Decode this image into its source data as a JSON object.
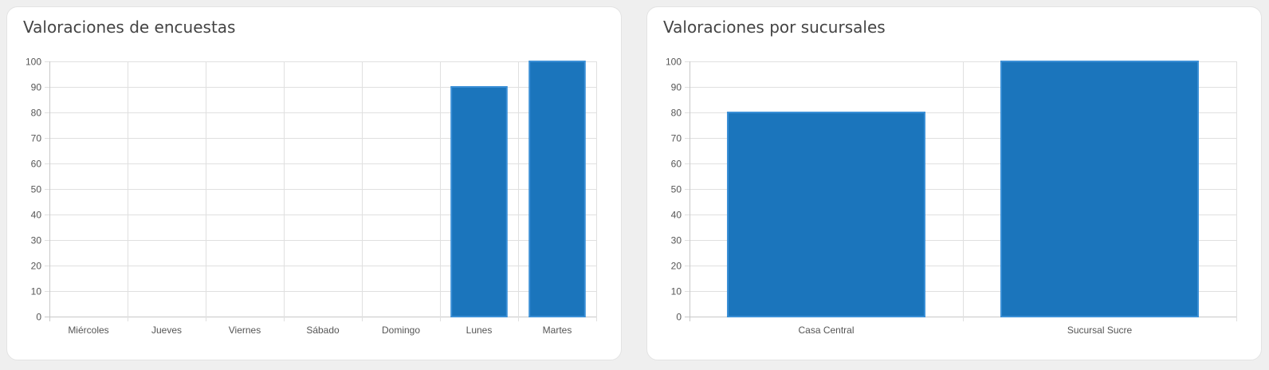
{
  "colors": {
    "bar_fill": "#1b75bc",
    "bar_stroke": "#3a8fd6",
    "grid": "#e0e0e0",
    "axis": "#c8c8c8",
    "tick_text": "#555555",
    "background": "#efefef",
    "card": "#ffffff"
  },
  "chart_data": [
    {
      "type": "bar",
      "title": "Valoraciones de encuestas",
      "categories": [
        "Miércoles",
        "Jueves",
        "Viernes",
        "Sábado",
        "Domingo",
        "Lunes",
        "Martes"
      ],
      "values": [
        0,
        0,
        0,
        0,
        0,
        90,
        100
      ],
      "ylim": [
        0,
        100
      ],
      "yticks": [
        "0",
        "10",
        "20",
        "30",
        "40",
        "50",
        "60",
        "70",
        "80",
        "90",
        "100"
      ],
      "xlabel": "",
      "ylabel": "",
      "grid": true,
      "legend": "none"
    },
    {
      "type": "bar",
      "title": "Valoraciones por sucursales",
      "categories": [
        "Casa Central",
        "Sucursal Sucre"
      ],
      "values": [
        80,
        100
      ],
      "ylim": [
        0,
        100
      ],
      "yticks": [
        "0",
        "10",
        "20",
        "30",
        "40",
        "50",
        "60",
        "70",
        "80",
        "90",
        "100"
      ],
      "xlabel": "",
      "ylabel": "",
      "grid": true,
      "legend": "none"
    }
  ]
}
